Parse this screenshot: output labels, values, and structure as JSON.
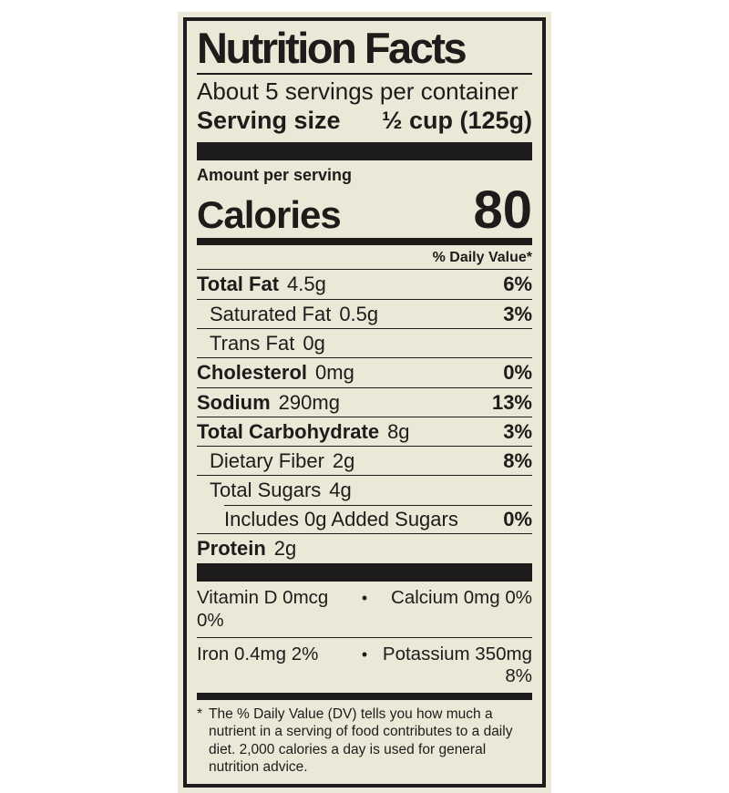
{
  "label": {
    "title": "Nutrition Facts",
    "servings_per_container": "About 5 servings per container",
    "serving_size_label": "Serving size",
    "serving_size_value": "½ cup (125g)",
    "amount_per_serving": "Amount per serving",
    "calories_label": "Calories",
    "calories_value": "80",
    "daily_value_header": "% Daily Value*",
    "nutrients": [
      {
        "name": "Total Fat",
        "amount": "4.5g",
        "dv": "6%",
        "bold": true,
        "indent": 0
      },
      {
        "name": "Saturated Fat",
        "amount": "0.5g",
        "dv": "3%",
        "bold": false,
        "indent": 1
      },
      {
        "name": "Trans Fat",
        "amount": "0g",
        "dv": "",
        "bold": false,
        "indent": 1
      },
      {
        "name": "Cholesterol",
        "amount": "0mg",
        "dv": "0%",
        "bold": true,
        "indent": 0
      },
      {
        "name": "Sodium",
        "amount": "290mg",
        "dv": "13%",
        "bold": true,
        "indent": 0
      },
      {
        "name": "Total Carbohydrate",
        "amount": "8g",
        "dv": "3%",
        "bold": true,
        "indent": 0
      },
      {
        "name": "Dietary Fiber",
        "amount": "2g",
        "dv": "8%",
        "bold": false,
        "indent": 1
      },
      {
        "name": "Total Sugars",
        "amount": "4g",
        "dv": "",
        "bold": false,
        "indent": 1
      },
      {
        "name": "Includes 0g Added Sugars",
        "amount": "",
        "dv": "0%",
        "bold": false,
        "indent": 2,
        "rule_indent": true
      },
      {
        "name": "Protein",
        "amount": "2g",
        "dv": "",
        "bold": true,
        "indent": 0
      }
    ],
    "micronutrients": [
      {
        "left": "Vitamin D  0mcg  0%",
        "bullet": "•",
        "right": "Calcium  0mg  0%"
      },
      {
        "left": "Iron  0.4mg  2%",
        "bullet": "•",
        "right": "Potassium  350mg  8%"
      }
    ],
    "footnote_marker": "*",
    "footnote": "The % Daily Value (DV) tells you how much a nutrient in a serving of food contributes to a daily diet. 2,000 calories a day is used for general nutrition advice."
  },
  "colors": {
    "label_background": "#ece8d8",
    "ink": "#1d1c1a",
    "page_background": "#ffffff"
  }
}
